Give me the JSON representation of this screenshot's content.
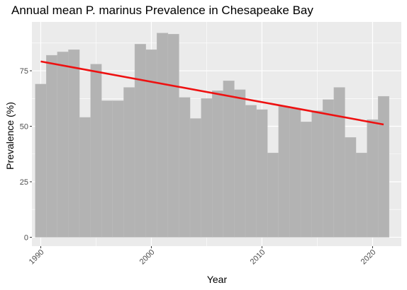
{
  "chart_data": {
    "type": "bar",
    "title": "Annual mean P. marinus Prevalence in Chesapeake Bay",
    "xlabel": "Year",
    "ylabel": "Prevalence (%)",
    "x": [
      1990,
      1991,
      1992,
      1993,
      1994,
      1995,
      1996,
      1997,
      1998,
      1999,
      2000,
      2001,
      2002,
      2003,
      2004,
      2005,
      2006,
      2007,
      2008,
      2009,
      2010,
      2011,
      2012,
      2013,
      2014,
      2015,
      2016,
      2017,
      2018,
      2019,
      2020,
      2021
    ],
    "values": [
      69,
      82,
      83.5,
      84.5,
      54,
      78,
      61.5,
      61.5,
      67.5,
      87,
      84.5,
      92,
      91.5,
      63,
      53.5,
      62.5,
      66,
      70.5,
      66.5,
      59.5,
      57.5,
      38,
      59,
      58,
      52,
      57,
      62,
      67.5,
      45,
      38,
      53,
      63.5
    ],
    "xlim": [
      1989.2,
      2022.6
    ],
    "ylim": [
      -4,
      97
    ],
    "xticks": [
      1990,
      2000,
      2010,
      2020
    ],
    "yticks": [
      0,
      25,
      50,
      75
    ],
    "ytick_labels": [
      "0",
      "25",
      "50",
      "75"
    ],
    "xtick_labels": [
      "1990",
      "2000",
      "2010",
      "2020"
    ],
    "trend_line": {
      "x": [
        1990,
        2021
      ],
      "y": [
        79.2,
        50.8
      ]
    },
    "grid": true,
    "colors": {
      "panel": "#ebebeb",
      "grid": "#ffffff",
      "bar": "#b3b3b3",
      "trend": "#ee1111",
      "tick": "#333333"
    }
  }
}
